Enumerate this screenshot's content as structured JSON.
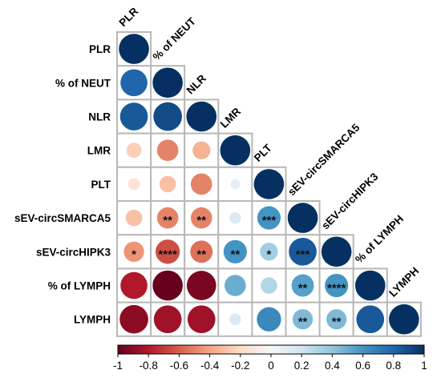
{
  "chart_data": {
    "type": "heatmap",
    "subtype": "correlation-matrix",
    "lower_triangle_only": true,
    "variables": [
      "PLR",
      "% of NEUT",
      "NLR",
      "LMR",
      "PLT",
      "sEV-circSMARCA5",
      "sEV-circHIPK3",
      "% of  LYMPH",
      "LYMPH"
    ],
    "correlations": [
      [
        1.0
      ],
      [
        0.8,
        1.0
      ],
      [
        0.85,
        0.9,
        1.0
      ],
      [
        -0.25,
        -0.5,
        -0.35,
        1.0
      ],
      [
        -0.15,
        -0.3,
        -0.5,
        0.1,
        1.0
      ],
      [
        -0.3,
        -0.5,
        -0.5,
        0.15,
        0.6,
        1.0
      ],
      [
        -0.45,
        -0.65,
        -0.55,
        0.6,
        0.35,
        0.85,
        1.0
      ],
      [
        -0.8,
        -1.0,
        -0.95,
        0.5,
        0.3,
        0.55,
        0.6,
        1.0
      ],
      [
        -0.9,
        -0.85,
        -0.85,
        0.15,
        0.65,
        0.45,
        0.45,
        0.85,
        1.0
      ]
    ],
    "significance": [
      [
        ""
      ],
      [
        "",
        ""
      ],
      [
        "",
        "",
        ""
      ],
      [
        "",
        "",
        "",
        ""
      ],
      [
        "",
        "",
        "",
        "",
        ""
      ],
      [
        "",
        "**",
        "**",
        "",
        "***",
        ""
      ],
      [
        "*",
        "****",
        "**",
        "**",
        "*",
        "***",
        ""
      ],
      [
        "",
        "",
        "",
        "",
        "",
        "**",
        "****",
        ""
      ],
      [
        "",
        "",
        "",
        "",
        "",
        "**",
        "**",
        "",
        ""
      ]
    ],
    "colorbar": {
      "range": [
        -1,
        1
      ],
      "ticks": [
        "-1",
        "-0.8",
        "-0.6",
        "-0.4",
        "-0.2",
        "0",
        "0.2",
        "0.4",
        "0.6",
        "0.8",
        "1"
      ]
    },
    "colors": {
      "negative_end": "#67001f",
      "positive_end": "#053061",
      "mid": "#f7f7f7"
    },
    "title": "",
    "xlabel": "",
    "ylabel": ""
  }
}
